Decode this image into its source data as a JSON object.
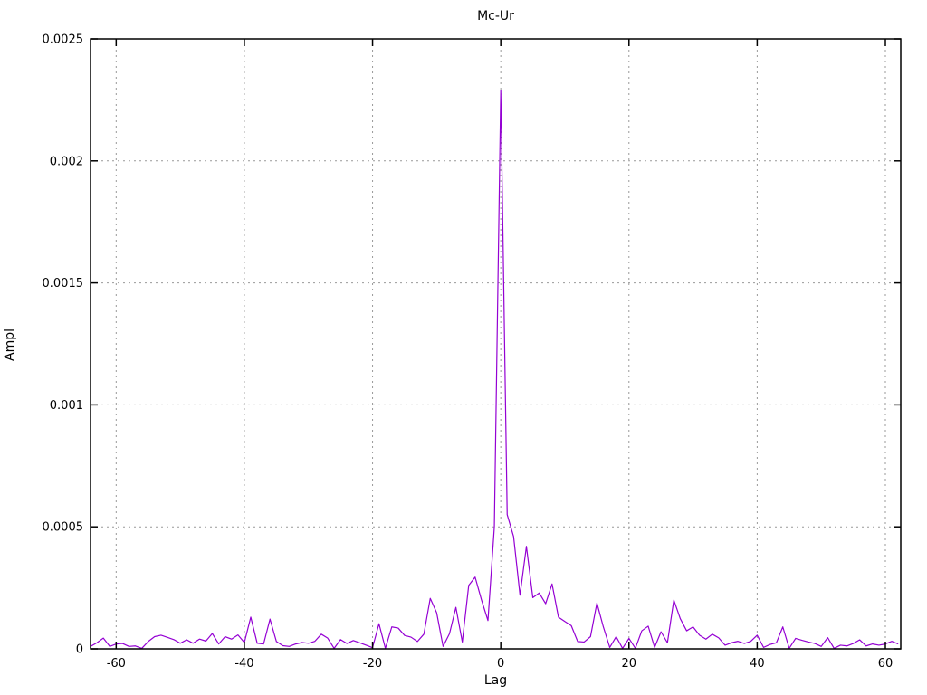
{
  "chart_data": {
    "type": "line",
    "title": "Mc-Ur",
    "xlabel": "Lag",
    "ylabel": "Ampl",
    "xlim": [
      -64,
      62.4
    ],
    "ylim": [
      0,
      0.0025
    ],
    "grid": true,
    "legend": "none",
    "line_color": "#9400d3",
    "grid_color": "#999999",
    "border_color": "#000000",
    "background_color": "#ffffff",
    "xticks": [
      -60,
      -40,
      -20,
      0,
      20,
      40,
      60
    ],
    "xtick_labels": [
      "-60",
      "-40",
      "-20",
      "0",
      "20",
      "40",
      "60"
    ],
    "yticks": [
      0,
      0.0005,
      0.001,
      0.0015,
      0.002,
      0.0025
    ],
    "ytick_labels": [
      "0",
      "0.0005",
      "0.001",
      "0.0015",
      "0.002",
      "0.0025"
    ],
    "x": [
      -64,
      -63,
      -62,
      -61,
      -60,
      -59,
      -58,
      -57,
      -56,
      -55,
      -54,
      -53,
      -52,
      -51,
      -50,
      -49,
      -48,
      -47,
      -46,
      -45,
      -44,
      -43,
      -42,
      -41,
      -40,
      -39,
      -38,
      -37,
      -36,
      -35,
      -34,
      -33,
      -32,
      -31,
      -30,
      -29,
      -28,
      -27,
      -26,
      -25,
      -24,
      -23,
      -22,
      -21,
      -20,
      -19,
      -18,
      -17,
      -16,
      -15,
      -14,
      -13,
      -12,
      -11,
      -10,
      -9,
      -8,
      -7,
      -6,
      -5,
      -4,
      -3,
      -2,
      -1,
      0,
      1,
      2,
      3,
      4,
      5,
      6,
      7,
      8,
      9,
      10,
      11,
      12,
      13,
      14,
      15,
      16,
      17,
      18,
      19,
      20,
      21,
      22,
      23,
      24,
      25,
      26,
      27,
      28,
      29,
      30,
      31,
      32,
      33,
      34,
      35,
      36,
      37,
      38,
      39,
      40,
      41,
      42,
      43,
      44,
      45,
      46,
      47,
      48,
      49,
      50,
      51,
      52,
      53,
      54,
      55,
      56,
      57,
      58,
      59,
      60,
      61,
      62
    ],
    "y": [
      1e-05,
      2.5e-05,
      4.4e-05,
      1e-05,
      2e-05,
      2.2e-05,
      1e-05,
      1.2e-05,
      2e-06,
      3e-05,
      5e-05,
      5.6e-05,
      4.7e-05,
      3.8e-05,
      2.3e-05,
      3.7e-05,
      2.3e-05,
      4e-05,
      3.2e-05,
      6.3e-05,
      2e-05,
      5e-05,
      4e-05,
      5.7e-05,
      2.6e-05,
      0.00013,
      2.3e-05,
      2e-05,
      0.000122,
      3e-05,
      1.3e-05,
      1e-05,
      2e-05,
      2.6e-05,
      2.3e-05,
      3.1e-05,
      6e-05,
      4.4e-05,
      2e-06,
      3.8e-05,
      2.2e-05,
      3.4e-05,
      2.5e-05,
      1.5e-05,
      5e-06,
      0.000103,
      2e-06,
      9e-05,
      8.5e-05,
      5.5e-05,
      4.8e-05,
      3e-05,
      6e-05,
      0.000207,
      0.000148,
      1e-05,
      6.2e-05,
      0.00017,
      2.8e-05,
      0.00026,
      0.000294,
      0.0002,
      0.000116,
      0.0005,
      0.00229,
      0.00055,
      0.00046,
      0.00022,
      0.00042,
      0.00021,
      0.000229,
      0.000185,
      0.000266,
      0.00013,
      0.000112,
      9.5e-05,
      3e-05,
      2.8e-05,
      5e-05,
      0.000188,
      9e-05,
      6e-06,
      5e-05,
      2e-06,
      4.3e-05,
      2e-06,
      7.4e-05,
      9.3e-05,
      6e-06,
      7e-05,
      2.5e-05,
      0.0002,
      0.000124,
      7.4e-05,
      9e-05,
      5.6e-05,
      4e-05,
      6e-05,
      4.5e-05,
      1.5e-05,
      2.5e-05,
      3.1e-05,
      2.2e-05,
      3.1e-05,
      5.6e-05,
      6e-06,
      1.8e-05,
      2.5e-05,
      9e-05,
      2e-06,
      4.3e-05,
      3.5e-05,
      2.8e-05,
      2.2e-05,
      1e-05,
      4.6e-05,
      2e-06,
      1.5e-05,
      1.2e-05,
      2.2e-05,
      3.7e-05,
      1.2e-05,
      2e-05,
      1.5e-05,
      2e-05,
      3.1e-05,
      2e-05
    ]
  }
}
